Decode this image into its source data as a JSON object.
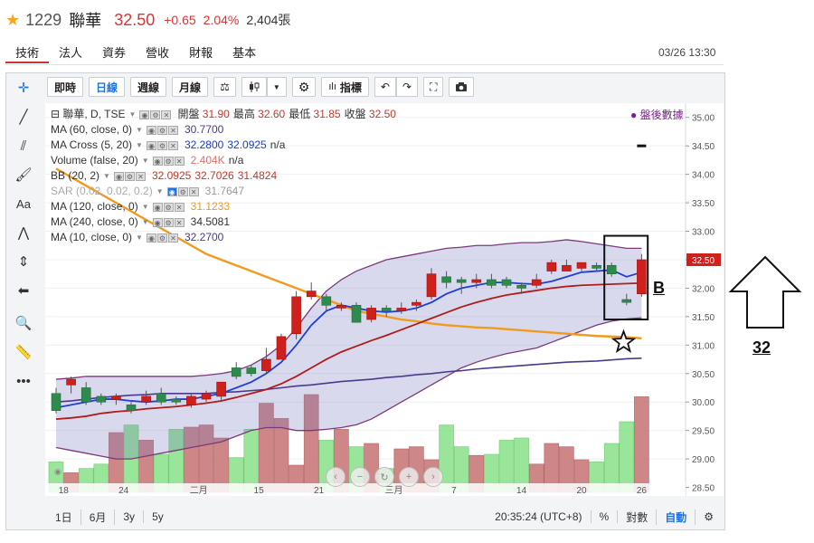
{
  "header": {
    "code": "1229",
    "name": "聯華",
    "price": "32.50",
    "change": "+0.65",
    "change_pct": "2.04%",
    "volume": "2,404張"
  },
  "tabs": [
    "技術",
    "法人",
    "資券",
    "營收",
    "財報",
    "基本"
  ],
  "timestamp": "03/26 13:30",
  "toolbar": {
    "buttons": [
      "即時",
      "日線",
      "週線",
      "月線"
    ],
    "indicator_label": "指標"
  },
  "legend": [
    {
      "title": "聯華, D, TSE",
      "values": [
        "開盤 31.90",
        "最高 32.60",
        "最低 31.85",
        "收盤 32.50"
      ],
      "color": "#8a1f2a"
    },
    {
      "title": "MA (60, close, 0)",
      "values": [
        "30.7700"
      ],
      "color": "#4b3a8c"
    },
    {
      "title": "MA Cross (5, 20)",
      "values": [
        "32.2800",
        "32.0925",
        "n/a"
      ],
      "color": "#1a3cc7"
    },
    {
      "title": "Volume (false, 20)",
      "values": [
        "2.404K",
        "n/a"
      ],
      "color": "#e07070"
    },
    {
      "title": "BB (20, 2)",
      "values": [
        "32.0925",
        "32.7026",
        "31.4824"
      ],
      "color": "#c0392b"
    },
    {
      "title": "SAR (0.02, 0.02, 0.2)",
      "values": [
        "31.7647"
      ],
      "color": "#999999",
      "muted": true
    },
    {
      "title": "MA (120, close, 0)",
      "values": [
        "31.1233"
      ],
      "color": "#e89a1e"
    },
    {
      "title": "MA (240, close, 0)",
      "values": [
        "34.5081"
      ],
      "color": "#333333"
    },
    {
      "title": "MA (10, close, 0)",
      "values": [
        "32.2700"
      ],
      "color": "#4b3a8c"
    }
  ],
  "post_market": "● 盤後數據",
  "price_axis": [
    "35.00",
    "34.50",
    "34.00",
    "33.50",
    "33.00",
    "32.50",
    "32.00",
    "31.50",
    "31.00",
    "30.50",
    "30.00",
    "29.50",
    "29.00",
    "28.50"
  ],
  "current_price_tag": "32.50",
  "x_axis": [
    {
      "label": "18",
      "idx": 0.5
    },
    {
      "label": "24",
      "idx": 4.5
    },
    {
      "label": "二月",
      "idx": 9.5
    },
    {
      "label": "15",
      "idx": 13.5
    },
    {
      "label": "21",
      "idx": 17.5
    },
    {
      "label": "三月",
      "idx": 22.5
    },
    {
      "label": "7",
      "idx": 26.5
    },
    {
      "label": "14",
      "idx": 31
    },
    {
      "label": "20",
      "idx": 35
    },
    {
      "label": "26",
      "idx": 39
    }
  ],
  "bottom_bar": {
    "ranges": [
      "1日",
      "6月",
      "3y",
      "5y"
    ],
    "clock": "20:35:24 (UTC+8)",
    "pct": "%",
    "log": "對數",
    "auto": "自動"
  },
  "annotations": {
    "box_label": "B",
    "arrow_label": "32"
  },
  "chart_data": {
    "type": "candlestick",
    "ylim": [
      28.35,
      35.25
    ],
    "candles": [
      {
        "o": 30.15,
        "c": 29.85,
        "h": 30.25,
        "l": 29.8
      },
      {
        "o": 30.3,
        "c": 30.4,
        "h": 30.45,
        "l": 30.15
      },
      {
        "o": 30.25,
        "c": 30.0,
        "h": 30.35,
        "l": 29.95
      },
      {
        "o": 30.1,
        "c": 30.0,
        "h": 30.15,
        "l": 29.95
      },
      {
        "o": 30.05,
        "c": 30.1,
        "h": 30.15,
        "l": 29.95
      },
      {
        "o": 29.95,
        "c": 29.85,
        "h": 30.0,
        "l": 29.8
      },
      {
        "o": 30.0,
        "c": 30.1,
        "h": 30.2,
        "l": 29.95
      },
      {
        "o": 30.15,
        "c": 30.0,
        "h": 30.25,
        "l": 29.95
      },
      {
        "o": 30.05,
        "c": 30.0,
        "h": 30.1,
        "l": 29.95
      },
      {
        "o": 29.95,
        "c": 30.1,
        "h": 30.15,
        "l": 29.9
      },
      {
        "o": 30.05,
        "c": 30.15,
        "h": 30.2,
        "l": 30.0
      },
      {
        "o": 30.1,
        "c": 30.35,
        "h": 30.35,
        "l": 30.0
      },
      {
        "o": 30.6,
        "c": 30.45,
        "h": 30.7,
        "l": 30.4
      },
      {
        "o": 30.6,
        "c": 30.5,
        "h": 30.65,
        "l": 30.45
      },
      {
        "o": 30.55,
        "c": 30.75,
        "h": 30.95,
        "l": 30.5
      },
      {
        "o": 30.75,
        "c": 31.15,
        "h": 31.2,
        "l": 30.75
      },
      {
        "o": 31.2,
        "c": 31.85,
        "h": 31.95,
        "l": 31.1
      },
      {
        "o": 31.85,
        "c": 31.95,
        "h": 32.1,
        "l": 31.8
      },
      {
        "o": 31.85,
        "c": 31.7,
        "h": 31.9,
        "l": 31.6
      },
      {
        "o": 31.65,
        "c": 31.7,
        "h": 31.75,
        "l": 31.6
      },
      {
        "o": 31.7,
        "c": 31.4,
        "h": 31.75,
        "l": 31.4
      },
      {
        "o": 31.45,
        "c": 31.65,
        "h": 31.7,
        "l": 31.4
      },
      {
        "o": 31.65,
        "c": 31.6,
        "h": 31.7,
        "l": 31.5
      },
      {
        "o": 31.6,
        "c": 31.65,
        "h": 31.75,
        "l": 31.55
      },
      {
        "o": 31.7,
        "c": 31.75,
        "h": 31.8,
        "l": 31.6
      },
      {
        "o": 31.85,
        "c": 32.25,
        "h": 32.35,
        "l": 31.8
      },
      {
        "o": 32.2,
        "c": 32.1,
        "h": 32.3,
        "l": 32.0
      },
      {
        "o": 32.15,
        "c": 32.1,
        "h": 32.2,
        "l": 31.9
      },
      {
        "o": 32.1,
        "c": 32.15,
        "h": 32.25,
        "l": 32.0
      },
      {
        "o": 32.15,
        "c": 32.05,
        "h": 32.25,
        "l": 32.0
      },
      {
        "o": 32.15,
        "c": 32.05,
        "h": 32.2,
        "l": 32.0
      },
      {
        "o": 32.05,
        "c": 32.0,
        "h": 32.1,
        "l": 31.9
      },
      {
        "o": 32.05,
        "c": 32.15,
        "h": 32.25,
        "l": 32.0
      },
      {
        "o": 32.3,
        "c": 32.45,
        "h": 32.5,
        "l": 32.25
      },
      {
        "o": 32.3,
        "c": 32.4,
        "h": 32.5,
        "l": 32.3
      },
      {
        "o": 32.35,
        "c": 32.45,
        "h": 32.45,
        "l": 32.3
      },
      {
        "o": 32.4,
        "c": 32.35,
        "h": 32.45,
        "l": 32.3
      },
      {
        "o": 32.4,
        "c": 32.25,
        "h": 32.45,
        "l": 32.2
      },
      {
        "o": 31.8,
        "c": 31.75,
        "h": 31.9,
        "l": 31.7
      },
      {
        "o": 31.9,
        "c": 32.5,
        "h": 32.6,
        "l": 31.85
      }
    ],
    "volume": [
      0.28,
      0.18,
      0.22,
      0.26,
      0.55,
      0.62,
      0.48,
      0.35,
      0.58,
      0.6,
      0.62,
      0.5,
      0.32,
      0.58,
      0.82,
      0.68,
      0.25,
      0.9,
      0.48,
      0.58,
      0.42,
      0.45,
      0.22,
      0.4,
      0.42,
      0.3,
      0.62,
      0.42,
      0.34,
      0.35,
      0.48,
      0.5,
      0.26,
      0.45,
      0.42,
      0.3,
      0.28,
      0.45,
      0.65,
      0.88
    ],
    "sar_points": [
      {
        "i": 39,
        "v": 34.5
      }
    ],
    "ma_blue": [
      29.9,
      29.95,
      30.0,
      30.05,
      30.05,
      30.02,
      30.0,
      30.02,
      30.05,
      30.05,
      30.1,
      30.15,
      30.25,
      30.35,
      30.5,
      30.7,
      31.0,
      31.35,
      31.6,
      31.7,
      31.65,
      31.6,
      31.58,
      31.6,
      31.65,
      31.75,
      31.9,
      32.0,
      32.05,
      32.1,
      32.1,
      32.08,
      32.07,
      32.12,
      32.2,
      32.28,
      32.3,
      32.32,
      32.2,
      32.28
    ],
    "ma_red": [
      29.7,
      29.72,
      29.75,
      29.8,
      29.83,
      29.85,
      29.88,
      29.9,
      29.92,
      29.95,
      29.98,
      30.02,
      30.08,
      30.15,
      30.22,
      30.32,
      30.45,
      30.6,
      30.75,
      30.88,
      30.98,
      31.08,
      31.17,
      31.27,
      31.37,
      31.47,
      31.57,
      31.67,
      31.75,
      31.82,
      31.88,
      31.92,
      31.96,
      32.0,
      32.03,
      32.05,
      32.06,
      32.07,
      32.08,
      32.09
    ],
    "ma_purple": [
      30.0,
      30.02,
      30.05,
      30.08,
      30.1,
      30.12,
      30.13,
      30.15,
      30.15,
      30.15,
      30.15,
      30.17,
      30.18,
      30.2,
      30.22,
      30.25,
      30.28,
      30.3,
      30.33,
      30.36,
      30.38,
      30.4,
      30.43,
      30.45,
      30.48,
      30.5,
      30.53,
      30.55,
      30.58,
      30.6,
      30.62,
      30.64,
      30.66,
      30.68,
      30.7,
      30.71,
      30.72,
      30.74,
      30.76,
      30.77
    ],
    "ma_orange": [
      34.1,
      33.95,
      33.8,
      33.65,
      33.5,
      33.35,
      33.2,
      33.05,
      32.9,
      32.75,
      32.6,
      32.5,
      32.4,
      32.3,
      32.2,
      32.1,
      32.0,
      31.9,
      31.8,
      31.7,
      31.6,
      31.55,
      31.5,
      31.45,
      31.42,
      31.38,
      31.35,
      31.33,
      31.31,
      31.3,
      31.28,
      31.26,
      31.24,
      31.22,
      31.2,
      31.18,
      31.16,
      31.15,
      31.14,
      31.12
    ],
    "bb_upper": [
      30.4,
      30.42,
      30.45,
      30.45,
      30.45,
      30.45,
      30.45,
      30.45,
      30.45,
      30.45,
      30.47,
      30.5,
      30.55,
      30.65,
      30.8,
      31.0,
      31.3,
      31.65,
      31.95,
      32.15,
      32.3,
      32.4,
      32.5,
      32.55,
      32.6,
      32.65,
      32.7,
      32.72,
      32.75,
      32.75,
      32.78,
      32.8,
      32.8,
      32.82,
      32.85,
      32.82,
      32.78,
      32.74,
      32.7,
      32.7
    ],
    "bb_lower": [
      29.2,
      29.15,
      29.1,
      29.05,
      29.0,
      29.0,
      29.05,
      29.1,
      29.15,
      29.2,
      29.25,
      29.3,
      29.4,
      29.5,
      29.55,
      29.55,
      29.5,
      29.5,
      29.52,
      29.55,
      29.6,
      29.7,
      29.85,
      30.0,
      30.15,
      30.3,
      30.45,
      30.6,
      30.7,
      30.78,
      30.85,
      30.9,
      30.95,
      31.05,
      31.15,
      31.25,
      31.35,
      31.42,
      31.46,
      31.48
    ]
  }
}
